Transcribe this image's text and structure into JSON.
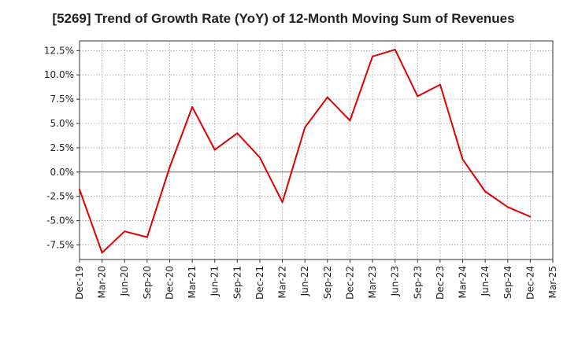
{
  "chart_data": {
    "type": "line",
    "title": "[5269]  Trend of Growth Rate (YoY) of 12-Month Moving Sum of Revenues",
    "xlabel": "",
    "ylabel": "",
    "x_ticks": [
      "Dec-19",
      "Mar-20",
      "Jun-20",
      "Sep-20",
      "Dec-20",
      "Mar-21",
      "Jun-21",
      "Sep-21",
      "Dec-21",
      "Mar-22",
      "Jun-22",
      "Sep-22",
      "Dec-22",
      "Mar-23",
      "Jun-23",
      "Sep-23",
      "Dec-23",
      "Mar-24",
      "Jun-24",
      "Sep-24",
      "Dec-24",
      "Mar-25"
    ],
    "y_ticks": [
      "12.5%",
      "10.0%",
      "7.5%",
      "5.0%",
      "2.5%",
      "0.0%",
      "-2.5%",
      "-5.0%",
      "-7.5%"
    ],
    "ylim": [
      -9.0,
      13.5
    ],
    "grid": true,
    "series": [
      {
        "color": "#e00000",
        "x": [
          "Dec-19",
          "Mar-20",
          "Jun-20",
          "Sep-20",
          "Dec-20",
          "Mar-21",
          "Jun-21",
          "Sep-21",
          "Dec-21",
          "Mar-22",
          "Jun-22",
          "Sep-22",
          "Dec-22",
          "Mar-23",
          "Jun-23",
          "Sep-23",
          "Dec-23",
          "Mar-24",
          "Jun-24",
          "Sep-24",
          "Dec-24"
        ],
        "values": [
          -1.8,
          -8.3,
          -6.1,
          -6.7,
          0.5,
          6.7,
          2.3,
          4.0,
          1.5,
          -3.1,
          4.6,
          7.7,
          5.3,
          11.9,
          12.6,
          7.8,
          9.0,
          1.3,
          -2.0,
          -3.6,
          -4.6
        ]
      }
    ]
  }
}
